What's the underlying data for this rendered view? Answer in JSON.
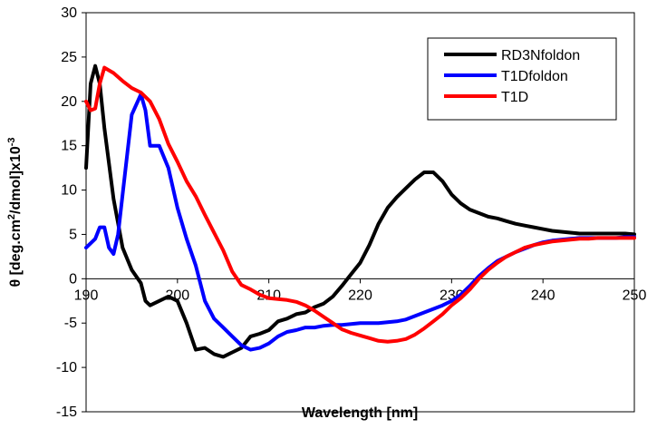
{
  "chart_data": {
    "type": "line",
    "title": "",
    "xlabel": "Wavelength [nm]",
    "ylabel_main": "θ [deg.cm",
    "ylabel_sup1": "2",
    "ylabel_mid": "/dmol]x10",
    "ylabel_sup2": "-3",
    "xlim": [
      190,
      250
    ],
    "ylim": [
      -15,
      30
    ],
    "xticks": [
      190,
      200,
      210,
      220,
      230,
      240,
      250
    ],
    "xtick_labels": [
      "190",
      "200",
      "210",
      "220",
      "230",
      "240",
      "250"
    ],
    "yticks": [
      -15,
      -10,
      -5,
      0,
      5,
      10,
      15,
      20,
      25,
      30
    ],
    "ytick_labels": [
      "-15",
      "-10",
      "-5",
      "0",
      "5",
      "10",
      "15",
      "20",
      "25",
      "30"
    ],
    "grid": false,
    "legend_position": "top-right",
    "series": [
      {
        "name": "RD3Nfoldon",
        "color": "#000000",
        "x": [
          190,
          190.5,
          191,
          191.5,
          192,
          193,
          194,
          195,
          196,
          196.5,
          197,
          198,
          199,
          200,
          201,
          202,
          203,
          204,
          205,
          206,
          207,
          208,
          209,
          210,
          211,
          212,
          213,
          214,
          215,
          216,
          217,
          218,
          219,
          220,
          221,
          222,
          223,
          224,
          225,
          226,
          227,
          228,
          229,
          230,
          231,
          232,
          233,
          234,
          235,
          236,
          237,
          238,
          239,
          240,
          241,
          242,
          243,
          244,
          245,
          246,
          247,
          248,
          249,
          250
        ],
        "y": [
          12.5,
          22,
          24,
          22,
          17,
          9,
          3.5,
          1,
          -0.5,
          -2.5,
          -3,
          -2.5,
          -2,
          -2.5,
          -5,
          -8,
          -7.8,
          -8.5,
          -8.8,
          -8.3,
          -7.8,
          -6.5,
          -6.2,
          -5.8,
          -4.8,
          -4.5,
          -4.0,
          -3.8,
          -3.2,
          -2.8,
          -2.0,
          -0.8,
          0.5,
          1.8,
          3.8,
          6.2,
          8.0,
          9.2,
          10.2,
          11.2,
          12.0,
          12.0,
          11.0,
          9.5,
          8.5,
          7.8,
          7.4,
          7.0,
          6.8,
          6.5,
          6.2,
          6.0,
          5.8,
          5.6,
          5.4,
          5.3,
          5.2,
          5.1,
          5.1,
          5.1,
          5.1,
          5.1,
          5.1,
          5.0
        ]
      },
      {
        "name": "T1Dfoldon",
        "color": "#0000ff",
        "x": [
          190,
          191,
          191.5,
          192,
          192.5,
          193,
          193.5,
          194,
          195,
          196,
          196.5,
          197,
          197.5,
          198,
          199,
          200,
          201,
          202,
          203,
          204,
          205,
          206,
          207,
          208,
          209,
          210,
          211,
          212,
          213,
          214,
          215,
          216,
          217,
          218,
          219,
          220,
          221,
          222,
          223,
          224,
          225,
          226,
          227,
          228,
          229,
          230,
          231,
          232,
          233,
          234,
          235,
          236,
          237,
          238,
          239,
          240,
          241,
          242,
          243,
          244,
          245,
          246,
          247,
          248,
          249,
          250
        ],
        "y": [
          3.5,
          4.5,
          5.8,
          5.8,
          3.5,
          2.8,
          5,
          9.5,
          18.5,
          20.8,
          19,
          15,
          15,
          15,
          12.5,
          8,
          4.5,
          1.5,
          -2.5,
          -4.5,
          -5.5,
          -6.5,
          -7.5,
          -8.0,
          -7.8,
          -7.3,
          -6.5,
          -6.0,
          -5.8,
          -5.5,
          -5.5,
          -5.3,
          -5.2,
          -5.2,
          -5.1,
          -5.0,
          -5.0,
          -5.0,
          -4.9,
          -4.8,
          -4.6,
          -4.2,
          -3.8,
          -3.4,
          -3.0,
          -2.5,
          -1.8,
          -0.8,
          0.3,
          1.2,
          2.0,
          2.5,
          3.0,
          3.4,
          3.8,
          4.1,
          4.3,
          4.4,
          4.5,
          4.6,
          4.6,
          4.6,
          4.6,
          4.6,
          4.7,
          4.7
        ]
      },
      {
        "name": "T1D",
        "color": "#ff0000",
        "x": [
          190,
          190.5,
          191,
          191.5,
          192,
          193,
          194,
          195,
          196,
          197,
          198,
          199,
          200,
          201,
          202,
          203,
          204,
          205,
          206,
          207,
          208,
          209,
          210,
          211,
          212,
          213,
          214,
          215,
          216,
          217,
          218,
          219,
          220,
          221,
          222,
          223,
          224,
          225,
          226,
          227,
          228,
          229,
          230,
          231,
          232,
          233,
          234,
          235,
          236,
          237,
          238,
          239,
          240,
          241,
          242,
          243,
          244,
          245,
          246,
          247,
          248,
          249,
          250
        ],
        "y": [
          20,
          19,
          19.2,
          22,
          23.8,
          23.2,
          22.3,
          21.5,
          21,
          20,
          18,
          15.2,
          13.2,
          11,
          9.3,
          7.2,
          5.2,
          3.2,
          0.8,
          -0.7,
          -1.2,
          -1.8,
          -2.2,
          -2.3,
          -2.4,
          -2.6,
          -3.0,
          -3.6,
          -4.3,
          -5.0,
          -5.7,
          -6.1,
          -6.4,
          -6.7,
          -7.0,
          -7.1,
          -7.0,
          -6.8,
          -6.3,
          -5.6,
          -4.8,
          -4.0,
          -3.0,
          -2.2,
          -1.2,
          0.0,
          1.0,
          1.8,
          2.5,
          3.0,
          3.5,
          3.8,
          4.0,
          4.2,
          4.3,
          4.4,
          4.5,
          4.5,
          4.6,
          4.6,
          4.6,
          4.6,
          4.6
        ]
      }
    ]
  }
}
